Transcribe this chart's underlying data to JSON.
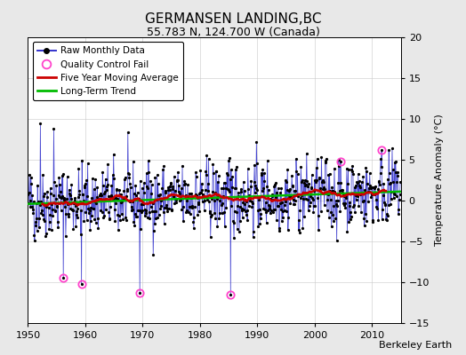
{
  "title": "GERMANSEN LANDING,BC",
  "subtitle": "55.783 N, 124.700 W (Canada)",
  "ylabel": "Temperature Anomaly (°C)",
  "credit": "Berkeley Earth",
  "xlim": [
    1950,
    2015
  ],
  "ylim": [
    -15,
    20
  ],
  "yticks": [
    -15,
    -10,
    -5,
    0,
    5,
    10,
    15,
    20
  ],
  "xticks": [
    1950,
    1960,
    1970,
    1980,
    1990,
    2000,
    2010
  ],
  "bg_color": "#e8e8e8",
  "plot_bg": "#ffffff",
  "raw_color": "#3333cc",
  "raw_dot_color": "#000000",
  "ma_color": "#cc0000",
  "trend_color": "#00bb00",
  "qc_color": "#ff44cc",
  "seed": 42,
  "n_monthly": 780,
  "year_start": 1950.0,
  "year_end": 2014.917,
  "title_fontsize": 11,
  "subtitle_fontsize": 9,
  "credit_fontsize": 8
}
